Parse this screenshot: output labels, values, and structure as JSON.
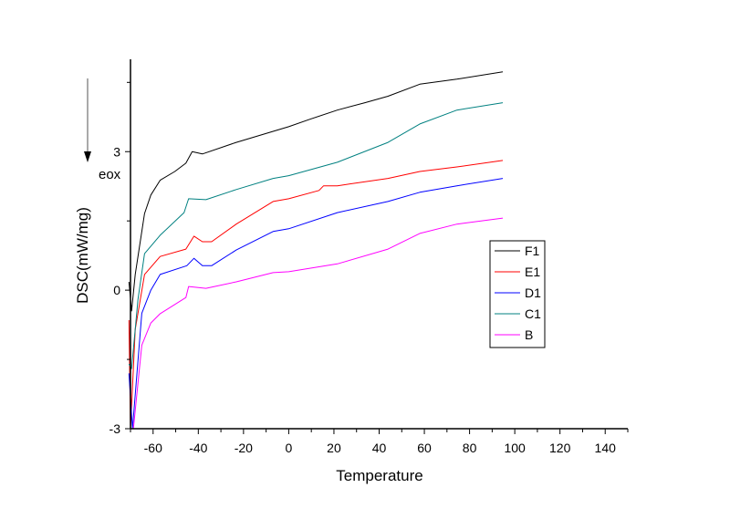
{
  "chart_data": {
    "type": "line",
    "title": "",
    "xlabel": "Temperature",
    "ylabel": "DSC(mW/mg)",
    "annotation": "eox",
    "xlim": [
      -70,
      150
    ],
    "ylim": [
      -3,
      5
    ],
    "xticks": [
      -60,
      -40,
      -20,
      0,
      20,
      40,
      60,
      80,
      100,
      120,
      140
    ],
    "yticks": [
      -3,
      0,
      3
    ],
    "legend_position": "right",
    "grid": false,
    "series": [
      {
        "name": "F1",
        "color": "#000000",
        "x": [
          -70.7,
          -69.5,
          -67.9,
          -63.8,
          -61,
          -56.9,
          -50.4,
          -45.5,
          -42.7,
          -38.2,
          -23.2,
          -6.9,
          0,
          9.3,
          21.5,
          33.7,
          43.9,
          58,
          74.4,
          94.7
        ],
        "y": [
          0.18,
          -0.45,
          0.34,
          1.66,
          2.06,
          2.38,
          2.57,
          2.75,
          3.0,
          2.95,
          3.2,
          3.44,
          3.54,
          3.7,
          3.9,
          4.06,
          4.2,
          4.46,
          4.57,
          4.73
        ]
      },
      {
        "name": "E1",
        "color": "#ff0000",
        "x": [
          -70.7,
          -70,
          -67.9,
          -63.8,
          -56.9,
          -45.5,
          -41.9,
          -38.2,
          -34.1,
          -23.2,
          -6.9,
          0,
          13.4,
          15.4,
          21.5,
          43.9,
          58,
          74.4,
          94.7
        ],
        "y": [
          -0.65,
          -3.0,
          -0.85,
          0.34,
          0.73,
          0.89,
          1.17,
          1.05,
          1.05,
          1.43,
          1.92,
          1.98,
          2.16,
          2.26,
          2.26,
          2.42,
          2.57,
          2.67,
          2.81
        ]
      },
      {
        "name": "D1",
        "color": "#0000ff",
        "x": [
          -70.7,
          -69.1,
          -65,
          -61,
          -56.9,
          -45.1,
          -41.9,
          -38.2,
          -34.1,
          -23.2,
          -6.9,
          0,
          21.5,
          43.9,
          58,
          74.4,
          94.7
        ],
        "y": [
          -1.8,
          -3.0,
          -0.5,
          0.0,
          0.34,
          0.53,
          0.69,
          0.53,
          0.53,
          0.87,
          1.27,
          1.33,
          1.68,
          1.92,
          2.12,
          2.26,
          2.42
        ]
      },
      {
        "name": "C1",
        "color": "#008080",
        "x": [
          -70.7,
          -69.5,
          -66.7,
          -63.8,
          -56.9,
          -46.3,
          -44.3,
          -36.6,
          -23.2,
          -6.9,
          0,
          21.5,
          43.9,
          58,
          74.4,
          94.7
        ],
        "y": [
          -1.6,
          -1.7,
          -0.2,
          0.79,
          1.19,
          1.68,
          1.98,
          1.96,
          2.18,
          2.42,
          2.48,
          2.77,
          3.2,
          3.6,
          3.9,
          4.06
        ]
      },
      {
        "name": "B",
        "color": "#ff00ff",
        "x": [
          -68.7,
          -65,
          -61,
          -56.9,
          -45.5,
          -44.3,
          -36.6,
          -23.2,
          -6.9,
          0,
          21.5,
          43.9,
          58,
          74.4,
          94.7
        ],
        "y": [
          -3.0,
          -1.19,
          -0.71,
          -0.51,
          -0.16,
          0.08,
          0.04,
          0.18,
          0.38,
          0.4,
          0.57,
          0.89,
          1.23,
          1.43,
          1.56
        ]
      }
    ]
  }
}
